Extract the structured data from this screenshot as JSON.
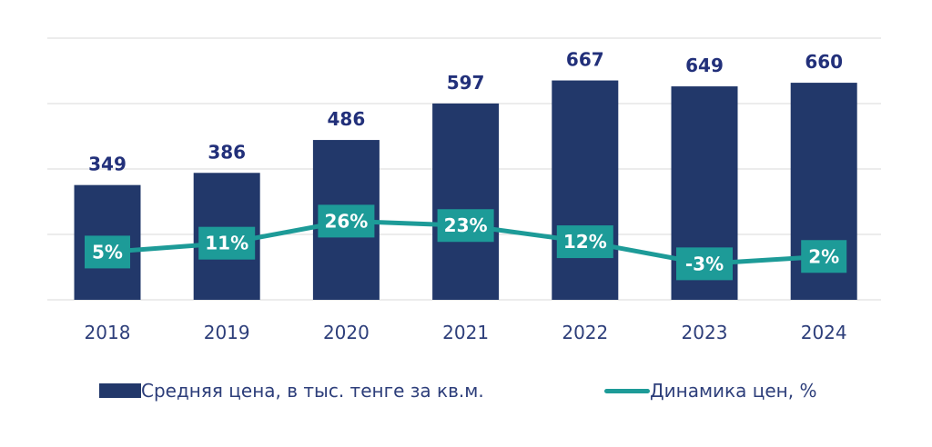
{
  "chart_data": {
    "type": "bar",
    "categories": [
      "2018",
      "2019",
      "2020",
      "2021",
      "2022",
      "2023",
      "2024"
    ],
    "series": [
      {
        "name": "Средняя цена, в тыс. тенге за кв.м.",
        "type": "bar",
        "values": [
          349,
          386,
          486,
          597,
          667,
          649,
          660
        ],
        "labels": [
          "349",
          "386",
          "486",
          "597",
          "667",
          "649",
          "660"
        ]
      },
      {
        "name": "Динамика цен, %",
        "type": "line",
        "values": [
          5,
          11,
          26,
          23,
          12,
          -3,
          2
        ],
        "labels": [
          "5%",
          "11%",
          "26%",
          "23%",
          "12%",
          "-3%",
          "2%"
        ]
      }
    ],
    "ylim": [
      0,
      800
    ],
    "y2lim": [
      -100,
      100
    ],
    "grid": true,
    "legend_position": "bottom"
  },
  "colors": {
    "bar": "#22386a",
    "line": "#1d9b98",
    "bar_label": "#22307a",
    "tick_label": "#2d3e7a",
    "grid": "#d9d9d9",
    "pct_text": "#ffffff"
  }
}
